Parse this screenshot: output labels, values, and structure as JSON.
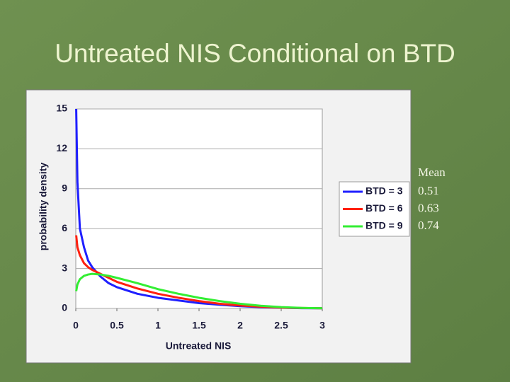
{
  "chart_data": {
    "type": "line",
    "title": "Untreated NIS Conditional on BTD",
    "x_label": "Untreated NIS",
    "y_label": "probability density",
    "mean_header": "Mean",
    "x": [
      0.005,
      0.02,
      0.05,
      0.1,
      0.15,
      0.2,
      0.3,
      0.4,
      0.5,
      0.75,
      1,
      1.25,
      1.5,
      1.75,
      2,
      2.25,
      2.5,
      2.75,
      3
    ],
    "series": [
      {
        "name": "BTD = 3",
        "color": "#1f1fff",
        "mean": 0.51,
        "values": [
          15,
          9.5,
          6,
          4.6,
          3.6,
          3.1,
          2.4,
          1.9,
          1.6,
          1.1,
          0.8,
          0.6,
          0.4,
          0.28,
          0.17,
          0.1,
          0.05,
          0.02,
          0.01
        ]
      },
      {
        "name": "BTD = 6",
        "color": "#ff2010",
        "mean": 0.63,
        "values": [
          5.5,
          4.6,
          4.0,
          3.4,
          3.1,
          2.9,
          2.6,
          2.3,
          2.0,
          1.5,
          1.1,
          0.8,
          0.55,
          0.35,
          0.22,
          0.13,
          0.06,
          0.03,
          0.01
        ]
      },
      {
        "name": "BTD = 9",
        "color": "#33ee33",
        "mean": 0.74,
        "values": [
          1.3,
          1.8,
          2.2,
          2.45,
          2.55,
          2.6,
          2.55,
          2.45,
          2.3,
          1.9,
          1.45,
          1.1,
          0.8,
          0.55,
          0.35,
          0.2,
          0.1,
          0.04,
          0.01
        ]
      }
    ],
    "xlim": [
      0,
      3
    ],
    "ylim": [
      0,
      15
    ],
    "xticks": [
      0,
      0.5,
      1,
      1.5,
      2,
      2.5,
      3
    ],
    "yticks": [
      0,
      3,
      6,
      9,
      12,
      15
    ],
    "grid": true
  }
}
